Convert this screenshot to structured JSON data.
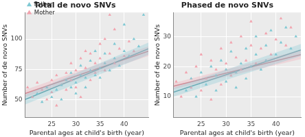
{
  "chart_data": [
    {
      "type": "scatter",
      "title": "Total de novo SNVs",
      "x_label": "Parental ages at child's birth (year)",
      "y_label": "Number of de novo SNVs",
      "xlim": [
        19.5,
        45
      ],
      "xticks": [
        25,
        30,
        35,
        40
      ],
      "ylim": [
        35,
        122
      ],
      "yticks": [
        50,
        75,
        100
      ],
      "grid": true,
      "legend": "top-left",
      "marker": "triangle",
      "series": [
        {
          "name": "Father",
          "color": "#7ec8d3",
          "x": [
            22,
            23,
            24,
            25,
            26,
            27,
            27,
            28,
            29,
            29,
            30,
            30,
            31,
            31,
            32,
            32,
            33,
            33,
            34,
            34,
            35,
            35,
            36,
            36,
            37,
            38,
            38,
            39,
            40,
            41,
            42,
            43,
            44,
            40
          ],
          "values": [
            55,
            48,
            60,
            52,
            58,
            62,
            50,
            66,
            60,
            72,
            64,
            55,
            70,
            78,
            68,
            60,
            74,
            82,
            70,
            90,
            76,
            68,
            80,
            88,
            74,
            84,
            96,
            78,
            90,
            86,
            100,
            94,
            120,
            112
          ],
          "trend": {
            "x": [
              19.5,
              45
            ],
            "y": [
              50,
              92
            ],
            "lower": [
              46,
              87
            ],
            "upper": [
              54,
              97
            ]
          }
        },
        {
          "name": "Mother",
          "color": "#f2a3ae",
          "x": [
            20,
            21,
            22,
            23,
            24,
            25,
            25,
            26,
            26,
            27,
            28,
            28,
            29,
            29,
            30,
            30,
            31,
            31,
            32,
            32,
            33,
            33,
            34,
            34,
            35,
            35,
            36,
            36,
            37,
            38,
            38,
            39,
            40,
            41,
            42,
            37
          ],
          "values": [
            60,
            52,
            64,
            58,
            50,
            66,
            56,
            70,
            45,
            62,
            72,
            58,
            80,
            66,
            74,
            60,
            84,
            52,
            76,
            90,
            66,
            88,
            80,
            72,
            96,
            84,
            74,
            100,
            88,
            80,
            108,
            92,
            86,
            98,
            90,
            120
          ],
          "trend": {
            "x": [
              19.5,
              45
            ],
            "y": [
              55,
              90
            ],
            "lower": [
              52,
              86
            ],
            "upper": [
              58,
              94
            ]
          }
        }
      ]
    },
    {
      "type": "scatter",
      "title": "Phased de novo SNVs",
      "x_label": "Parental ages at child's birth (year)",
      "y_label": "Number of de novo SNVs",
      "xlim": [
        19.5,
        45
      ],
      "xticks": [
        25,
        30,
        35,
        40
      ],
      "ylim": [
        3,
        38
      ],
      "yticks": [
        10,
        20,
        30
      ],
      "grid": true,
      "marker": "triangle",
      "series": [
        {
          "name": "Father",
          "color": "#7ec8d3",
          "x": [
            22,
            23,
            24,
            25,
            26,
            27,
            28,
            28,
            29,
            30,
            30,
            31,
            32,
            32,
            33,
            34,
            34,
            35,
            36,
            36,
            37,
            38,
            38,
            39,
            40,
            41,
            42,
            43,
            44
          ],
          "values": [
            12,
            16,
            10,
            18,
            14,
            20,
            12,
            17,
            22,
            15,
            19,
            25,
            18,
            13,
            21,
            26,
            16,
            20,
            24,
            30,
            19,
            27,
            22,
            32,
            24,
            28,
            33,
            26,
            30
          ],
          "trend": {
            "x": [
              19.5,
              45
            ],
            "y": [
              11.5,
              25.5
            ],
            "lower": [
              10,
              23.5
            ],
            "upper": [
              13,
              27.5
            ]
          }
        },
        {
          "name": "Mother",
          "color": "#f2a3ae",
          "x": [
            20,
            21,
            22,
            23,
            24,
            25,
            25,
            26,
            27,
            27,
            28,
            29,
            29,
            30,
            31,
            31,
            32,
            33,
            33,
            34,
            35,
            35,
            36,
            37,
            38,
            39,
            40,
            41,
            42,
            43
          ],
          "values": [
            15,
            10,
            18,
            13,
            20,
            12,
            24,
            16,
            22,
            9,
            19,
            14,
            26,
            21,
            17,
            28,
            23,
            19,
            30,
            22,
            27,
            35,
            21,
            26,
            31,
            24,
            29,
            36,
            27,
            33
          ],
          "trend": {
            "x": [
              19.5,
              45
            ],
            "y": [
              13.5,
              24
            ],
            "lower": [
              12.5,
              22.5
            ],
            "upper": [
              14.5,
              25.5
            ]
          }
        }
      ]
    }
  ]
}
